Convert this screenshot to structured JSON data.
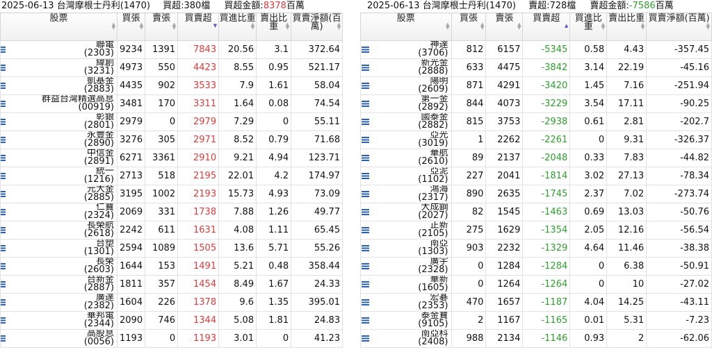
{
  "left": {
    "date": "2025-06-13",
    "broker": "台灣摩根士丹利(1470)",
    "count_label": "買超:380檔",
    "amount_label": "買超金額:",
    "amount_value": "8378",
    "amount_unit": "百萬",
    "headers": {
      "stock": "股票",
      "buy": "買張",
      "sell": "賣張",
      "net": "買賣超",
      "ratio1": "買進比重",
      "ratio2": "賣出比重",
      "amount": "買賣淨額(百萬)"
    },
    "rows": [
      {
        "name": "聯電",
        "code": "(2303)",
        "buy": "9234",
        "sell": "1391",
        "net": "7843",
        "r1": "20.56",
        "r2": "3.1",
        "amt": "372.64"
      },
      {
        "name": "緯創",
        "code": "(3231)",
        "buy": "4973",
        "sell": "550",
        "net": "4423",
        "r1": "8.55",
        "r2": "0.95",
        "amt": "521.17"
      },
      {
        "name": "凱基金",
        "code": "(2883)",
        "buy": "4435",
        "sell": "902",
        "net": "3533",
        "r1": "7.9",
        "r2": "1.61",
        "amt": "58.04"
      },
      {
        "name": "群益台灣精選高息",
        "code": "(00919)",
        "buy": "3481",
        "sell": "170",
        "net": "3311",
        "r1": "1.64",
        "r2": "0.08",
        "amt": "74.54"
      },
      {
        "name": "彰銀",
        "code": "(2801)",
        "buy": "2979",
        "sell": "0",
        "net": "2979",
        "r1": "7.29",
        "r2": "0",
        "amt": "55.11"
      },
      {
        "name": "永豐金",
        "code": "(2890)",
        "buy": "3276",
        "sell": "305",
        "net": "2971",
        "r1": "8.52",
        "r2": "0.79",
        "amt": "71.68"
      },
      {
        "name": "中信金",
        "code": "(2891)",
        "buy": "6271",
        "sell": "3361",
        "net": "2910",
        "r1": "9.21",
        "r2": "4.94",
        "amt": "123.71"
      },
      {
        "name": "統一",
        "code": "(1216)",
        "buy": "2713",
        "sell": "518",
        "net": "2195",
        "r1": "22.01",
        "r2": "4.2",
        "amt": "174.97"
      },
      {
        "name": "元大金",
        "code": "(2885)",
        "buy": "3195",
        "sell": "1002",
        "net": "2193",
        "r1": "15.73",
        "r2": "4.93",
        "amt": "73.09"
      },
      {
        "name": "仁寶",
        "code": "(2324)",
        "buy": "2069",
        "sell": "331",
        "net": "1738",
        "r1": "7.88",
        "r2": "1.26",
        "amt": "49.77"
      },
      {
        "name": "長榮航",
        "code": "(2618)",
        "buy": "2242",
        "sell": "611",
        "net": "1631",
        "r1": "4.08",
        "r2": "1.11",
        "amt": "65.45"
      },
      {
        "name": "台塑",
        "code": "(1301)",
        "buy": "2594",
        "sell": "1089",
        "net": "1505",
        "r1": "13.6",
        "r2": "5.71",
        "amt": "55.26"
      },
      {
        "name": "長榮",
        "code": "(2603)",
        "buy": "1644",
        "sell": "153",
        "net": "1491",
        "r1": "5.21",
        "r2": "0.48",
        "amt": "358.44"
      },
      {
        "name": "台新金",
        "code": "(2887)",
        "buy": "1811",
        "sell": "357",
        "net": "1454",
        "r1": "8.49",
        "r2": "1.67",
        "amt": "24.33"
      },
      {
        "name": "廣達",
        "code": "(2382)",
        "buy": "1604",
        "sell": "226",
        "net": "1378",
        "r1": "9.6",
        "r2": "1.35",
        "amt": "395.01"
      },
      {
        "name": "華邦電",
        "code": "(2344)",
        "buy": "2090",
        "sell": "746",
        "net": "1344",
        "r1": "5.08",
        "r2": "1.81",
        "amt": "24.83"
      },
      {
        "name": "高股息",
        "code": "(0056)",
        "buy": "1193",
        "sell": "0",
        "net": "1193",
        "r1": "3.01",
        "r2": "0",
        "amt": "41.23"
      }
    ]
  },
  "right": {
    "date": "2025-06-13",
    "broker": "台灣摩根士丹利(1470)",
    "count_label": "賣超:728檔",
    "amount_label": "賣超金額:",
    "amount_value": "-7586",
    "amount_unit": "百萬",
    "headers": {
      "stock": "股票",
      "buy": "買張",
      "sell": "賣張",
      "net": "買賣超",
      "ratio1": "買進比重",
      "ratio2": "賣出比重",
      "amount": "買賣淨額(百萬)"
    },
    "rows": [
      {
        "name": "神達",
        "code": "(3706)",
        "buy": "812",
        "sell": "6157",
        "net": "-5345",
        "r1": "0.58",
        "r2": "4.43",
        "amt": "-357.45"
      },
      {
        "name": "新光金",
        "code": "(2888)",
        "buy": "633",
        "sell": "4475",
        "net": "-3842",
        "r1": "3.14",
        "r2": "22.19",
        "amt": "-45.16"
      },
      {
        "name": "陽明",
        "code": "(2609)",
        "buy": "871",
        "sell": "4291",
        "net": "-3420",
        "r1": "1.45",
        "r2": "7.16",
        "amt": "-251.94"
      },
      {
        "name": "第一金",
        "code": "(2892)",
        "buy": "844",
        "sell": "4073",
        "net": "-3229",
        "r1": "3.54",
        "r2": "17.11",
        "amt": "-90.25"
      },
      {
        "name": "國泰金",
        "code": "(2882)",
        "buy": "815",
        "sell": "3753",
        "net": "-2938",
        "r1": "0.61",
        "r2": "2.81",
        "amt": "-202.7"
      },
      {
        "name": "亞光",
        "code": "(3019)",
        "buy": "1",
        "sell": "2262",
        "net": "-2261",
        "r1": "0",
        "r2": "9.31",
        "amt": "-326.37"
      },
      {
        "name": "華航",
        "code": "(2610)",
        "buy": "89",
        "sell": "2137",
        "net": "-2048",
        "r1": "0.33",
        "r2": "7.83",
        "amt": "-44.82"
      },
      {
        "name": "亞泥",
        "code": "(1102)",
        "buy": "227",
        "sell": "2041",
        "net": "-1814",
        "r1": "3.02",
        "r2": "27.13",
        "amt": "-78.34"
      },
      {
        "name": "鴻海",
        "code": "(2317)",
        "buy": "890",
        "sell": "2635",
        "net": "-1745",
        "r1": "2.37",
        "r2": "7.02",
        "amt": "-273.74"
      },
      {
        "name": "大成鋼",
        "code": "(2027)",
        "buy": "82",
        "sell": "1545",
        "net": "-1463",
        "r1": "0.69",
        "r2": "13.03",
        "amt": "-50.76"
      },
      {
        "name": "正新",
        "code": "(2105)",
        "buy": "275",
        "sell": "1629",
        "net": "-1354",
        "r1": "2.05",
        "r2": "12.16",
        "amt": "-56.54"
      },
      {
        "name": "南亞",
        "code": "(1303)",
        "buy": "903",
        "sell": "2232",
        "net": "-1329",
        "r1": "4.64",
        "r2": "11.46",
        "amt": "-38.38"
      },
      {
        "name": "廣宇",
        "code": "(2328)",
        "buy": "0",
        "sell": "1284",
        "net": "-1284",
        "r1": "0",
        "r2": "6.38",
        "amt": "-50.91"
      },
      {
        "name": "華新",
        "code": "(1605)",
        "buy": "0",
        "sell": "1264",
        "net": "-1264",
        "r1": "0",
        "r2": "10",
        "amt": "-27.02"
      },
      {
        "name": "宏碁",
        "code": "(2353)",
        "buy": "470",
        "sell": "1657",
        "net": "-1187",
        "r1": "4.04",
        "r2": "14.25",
        "amt": "-43.11"
      },
      {
        "name": "泰金寶",
        "code": "(9105)",
        "buy": "2",
        "sell": "1167",
        "net": "-1165",
        "r1": "0.01",
        "r2": "5.31",
        "amt": "-7.23"
      },
      {
        "name": "南亞科",
        "code": "(2408)",
        "buy": "988",
        "sell": "2134",
        "net": "-1146",
        "r1": "0.93",
        "r2": "2",
        "amt": "-62.06"
      }
    ]
  },
  "colors": {
    "positive": "#e03a3a",
    "negative": "#2e9e2e",
    "icon": "#2a5fb3"
  }
}
